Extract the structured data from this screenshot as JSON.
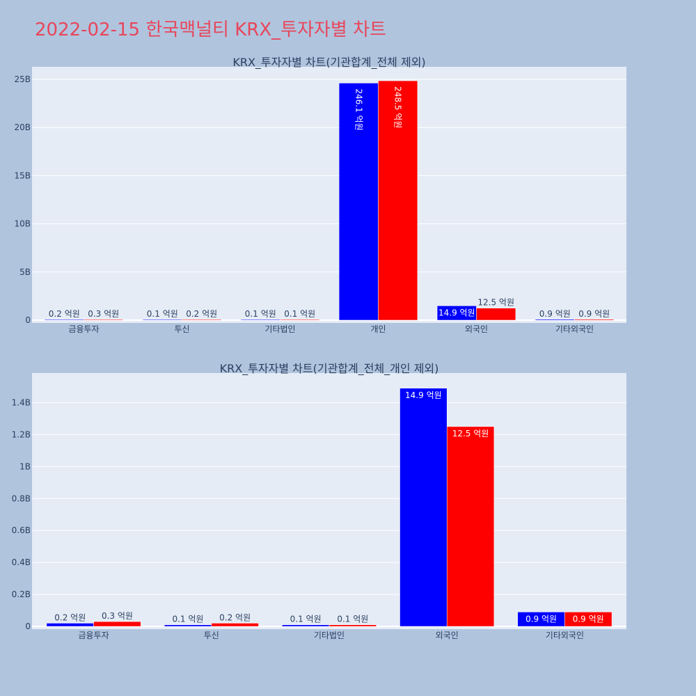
{
  "page": {
    "title": "2022-02-15 한국맥널티 KRX_투자자별 차트"
  },
  "colors": {
    "background": "#b0c4de",
    "plot_bg": "#e5ecf6",
    "title": "#e8465a",
    "series_blue": "#0000ff",
    "series_red": "#ff0000",
    "axis_text": "#2a3f5f"
  },
  "chart_data": [
    {
      "type": "bar",
      "title": "KRX_투자자별 차트(기관합계_전체 제외)",
      "categories": [
        "금융투자",
        "투신",
        "기타법인",
        "개인",
        "외국인",
        "기타외국인"
      ],
      "series": [
        {
          "color": "#0000ff",
          "values": [
            0.02,
            0.01,
            0.01,
            24.61,
            1.49,
            0.09
          ],
          "labels": [
            "0.2 억원",
            "0.1 억원",
            "0.1 억원",
            "246.1 억원",
            "14.9 억원",
            "0.9 억원"
          ]
        },
        {
          "color": "#ff0000",
          "values": [
            0.03,
            0.02,
            0.01,
            24.85,
            1.25,
            0.09
          ],
          "labels": [
            "0.3 억원",
            "0.2 억원",
            "0.1 억원",
            "248.5 억원",
            "12.5 억원",
            "0.9 억원"
          ]
        }
      ],
      "ylim": [
        0,
        26.3
      ],
      "yticks": [
        0,
        5,
        10,
        15,
        20,
        25
      ],
      "ytick_labels": [
        "0",
        "5B",
        "10B",
        "15B",
        "20B",
        "25B"
      ],
      "xlabel": "",
      "ylabel": "",
      "grid": true
    },
    {
      "type": "bar",
      "title": "KRX_투자자별 차트(기관합계_전체_개인 제외)",
      "categories": [
        "금융투자",
        "투신",
        "기타법인",
        "외국인",
        "기타외국인"
      ],
      "series": [
        {
          "color": "#0000ff",
          "values": [
            0.02,
            0.01,
            0.01,
            1.49,
            0.09
          ],
          "labels": [
            "0.2 억원",
            "0.1 억원",
            "0.1 억원",
            "14.9 억원",
            "0.9 억원"
          ]
        },
        {
          "color": "#ff0000",
          "values": [
            0.03,
            0.02,
            0.01,
            1.25,
            0.09
          ],
          "labels": [
            "0.3 억원",
            "0.2 억원",
            "0.1 억원",
            "12.5 억원",
            "0.9 억원"
          ]
        }
      ],
      "ylim": [
        0,
        1.585
      ],
      "yticks": [
        0,
        0.2,
        0.4,
        0.6,
        0.8,
        1.0,
        1.2,
        1.4
      ],
      "ytick_labels": [
        "0",
        "0.2B",
        "0.4B",
        "0.6B",
        "0.8B",
        "1B",
        "1.2B",
        "1.4B"
      ],
      "xlabel": "",
      "ylabel": "",
      "grid": true
    }
  ]
}
